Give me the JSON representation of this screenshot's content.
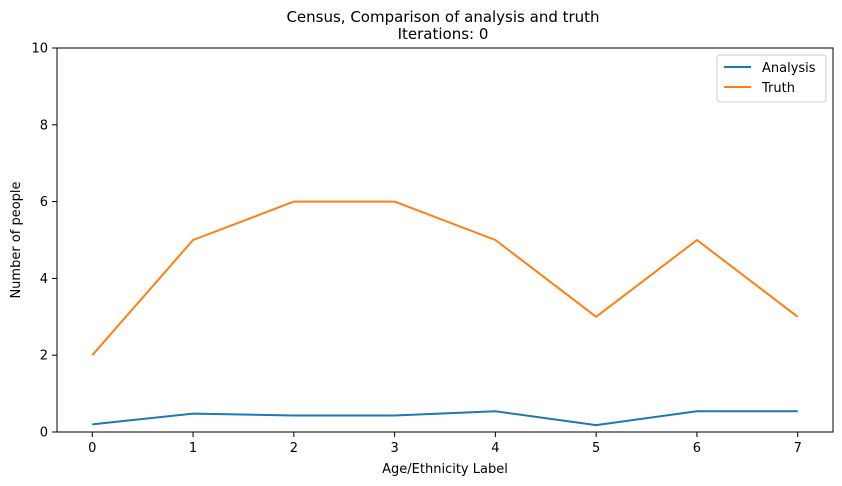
{
  "chart_data": {
    "type": "line",
    "title": "Census, Comparison of analysis and truth",
    "subtitle": "Iterations: 0",
    "xlabel": "Age/Ethnicity Label",
    "ylabel": "Number of people",
    "x": [
      0,
      1,
      2,
      3,
      4,
      5,
      6,
      7
    ],
    "xlim": [
      -0.35,
      7.35
    ],
    "ylim": [
      0,
      10
    ],
    "xticks": [
      0,
      1,
      2,
      3,
      4,
      5,
      6,
      7
    ],
    "yticks": [
      0,
      2,
      4,
      6,
      8,
      10
    ],
    "grid": false,
    "legend_position": "top-right",
    "series": [
      {
        "name": "Analysis",
        "color": "#1f77b4",
        "values": [
          0.2,
          0.48,
          0.43,
          0.43,
          0.54,
          0.18,
          0.54,
          0.54
        ]
      },
      {
        "name": "Truth",
        "color": "#ff7f0e",
        "values": [
          2,
          5,
          6,
          6,
          5,
          3,
          5,
          3
        ]
      }
    ]
  }
}
